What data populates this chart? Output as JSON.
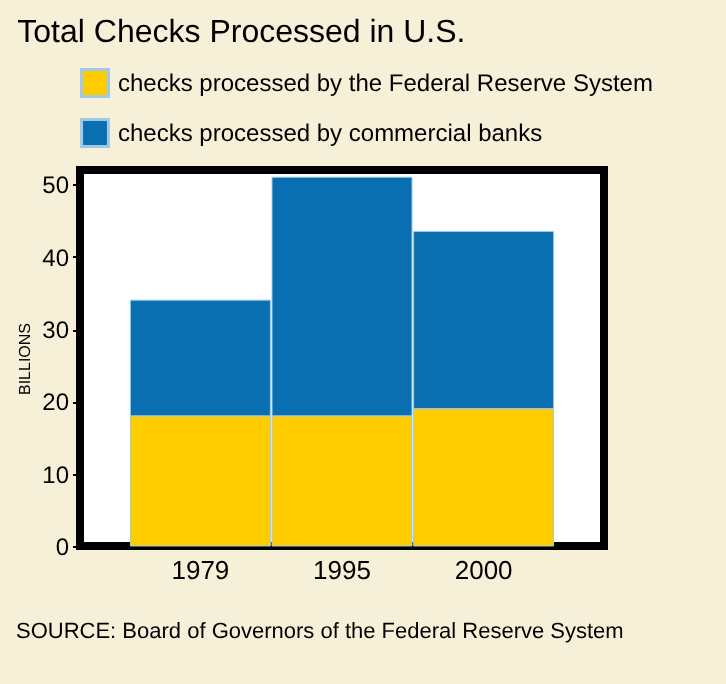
{
  "chart_data": {
    "type": "bar",
    "title": "Total Checks Processed in U.S.",
    "ylabel": "BILLIONS",
    "categories": [
      "1979",
      "1995",
      "2000"
    ],
    "series": [
      {
        "name": "checks processed by the Federal Reserve System",
        "color": "#ffcc00",
        "values": [
          18,
          18,
          19
        ]
      },
      {
        "name": "checks processed by commercial banks",
        "color": "#0a6fb0",
        "values": [
          16,
          33,
          24.5
        ]
      }
    ],
    "stacked": true,
    "ylim": [
      0,
      52
    ],
    "yticks": [
      0,
      10,
      20,
      30,
      40,
      50
    ],
    "grid": false,
    "legend": "top left",
    "annotations": [
      "SOURCE: Board of Governors of the Federal Reserve System"
    ]
  }
}
